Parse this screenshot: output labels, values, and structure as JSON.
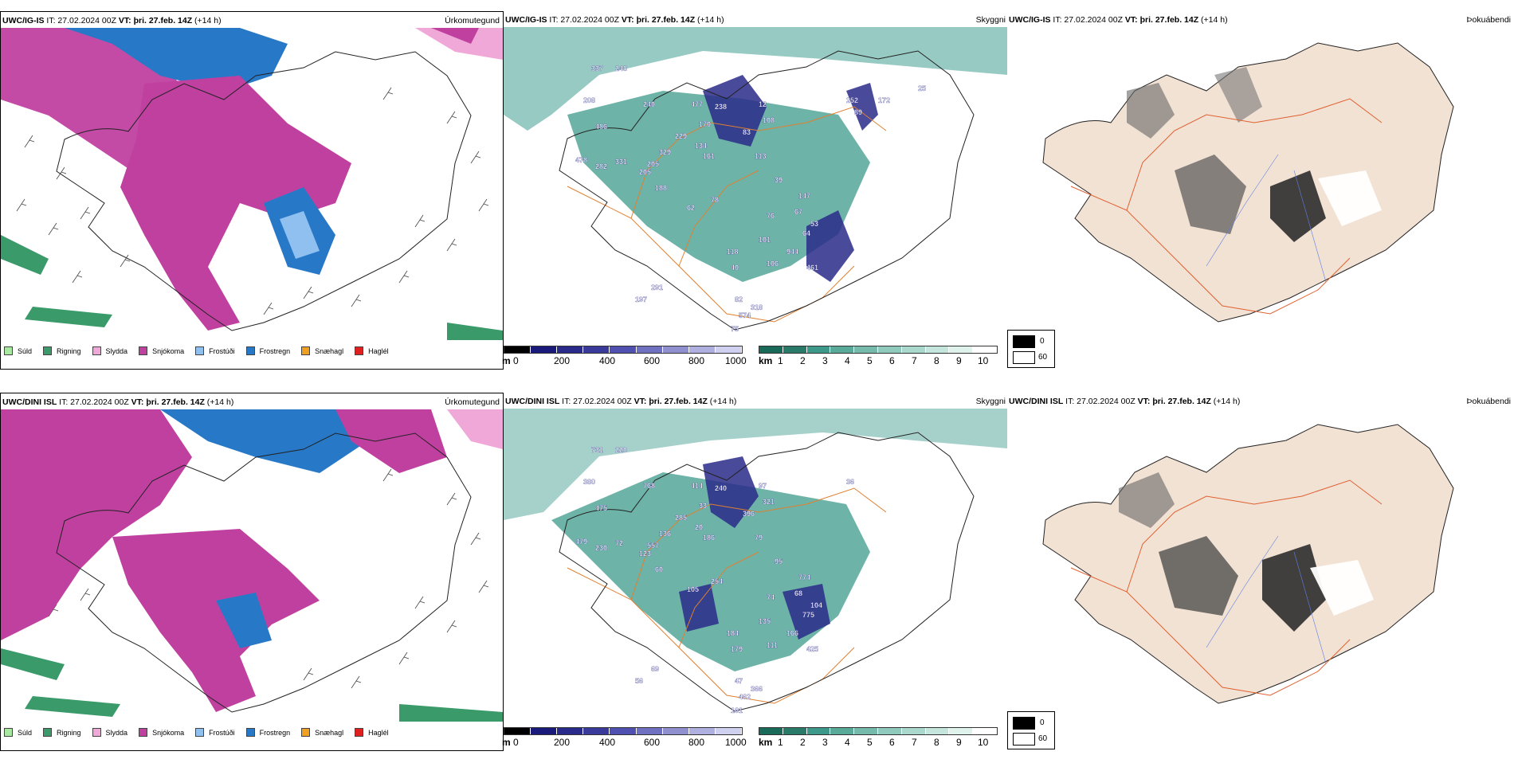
{
  "rows": [
    {
      "header_model": "UWC/IG-IS",
      "header_it": "IT: 27.02.2024 00Z",
      "header_vt_label": "VT:",
      "header_vt": "þri. 27.feb. 14Z",
      "header_lead": "(+14 h)",
      "panel1_title": "Úrkomutegund",
      "panel2_title": "Skyggni",
      "panel3_title": "Þokuábendi",
      "labels": [
        "337",
        "248",
        "208",
        "240",
        "477",
        "238",
        "486",
        "170",
        "12",
        "108",
        "229",
        "83",
        "329",
        "134",
        "161",
        "113",
        "478",
        "282",
        "331",
        "205",
        "205",
        "188",
        "62",
        "78",
        "76",
        "67",
        "53",
        "64",
        "101",
        "944",
        "118",
        "461",
        "106",
        "40",
        "291",
        "197",
        "82",
        "318",
        "574",
        "75",
        "39",
        "147",
        "252",
        "89",
        "172",
        "25"
      ]
    },
    {
      "header_model": "UWC/DINI ISL",
      "header_it": "IT: 27.02.2024 00Z",
      "header_vt_label": "VT:",
      "header_vt": "þri. 27.feb. 14Z",
      "header_lead": "(+14 h)",
      "panel1_title": "Úrkomutegund",
      "panel2_title": "Skyggni",
      "panel3_title": "Þokuábendi",
      "labels": [
        "731",
        "220",
        "380",
        "768",
        "414",
        "240",
        "475",
        "33",
        "97",
        "321",
        "285",
        "396",
        "136",
        "20",
        "186",
        "79",
        "479",
        "230",
        "72",
        "123",
        "557",
        "60",
        "105",
        "254",
        "74",
        "68",
        "104",
        "775",
        "135",
        "166",
        "184",
        "425",
        "111",
        "179",
        "69",
        "56",
        "47",
        "366",
        "462",
        "161",
        "95",
        "774",
        "36"
      ]
    }
  ],
  "precip_legend": [
    {
      "label": "Súld",
      "color": "#a8e8a0"
    },
    {
      "label": "Rigning",
      "color": "#3a9a6a"
    },
    {
      "label": "Slydda",
      "color": "#f0a8d8"
    },
    {
      "label": "Snjókoma",
      "color": "#c040a0"
    },
    {
      "label": "Frostúði",
      "color": "#90c0f0"
    },
    {
      "label": "Frostregn",
      "color": "#2878c8"
    },
    {
      "label": "Snæhagl",
      "color": "#f0a020"
    },
    {
      "label": "Haglél",
      "color": "#e02020"
    }
  ],
  "ceiling_bar": {
    "unit": "m",
    "ticks": [
      "0",
      "200",
      "400",
      "600",
      "800",
      "1000"
    ]
  },
  "visibility_bar": {
    "unit": "km",
    "ticks": [
      "1",
      "2",
      "3",
      "4",
      "5",
      "6",
      "7",
      "8",
      "9",
      "10"
    ]
  },
  "fog_legend": {
    "black": "0",
    "white": "60"
  },
  "colors": {
    "snow": "#c040a0",
    "freezing_rain": "#2878c8",
    "freezing_drizzle": "#90c0f0",
    "rain": "#3a9a6a",
    "sleet": "#f0a8d8",
    "visibility": "#3d9a8a",
    "ceiling": "#2a2a8a",
    "land_fog": "#f2e2d4",
    "roads": "#e06030"
  }
}
